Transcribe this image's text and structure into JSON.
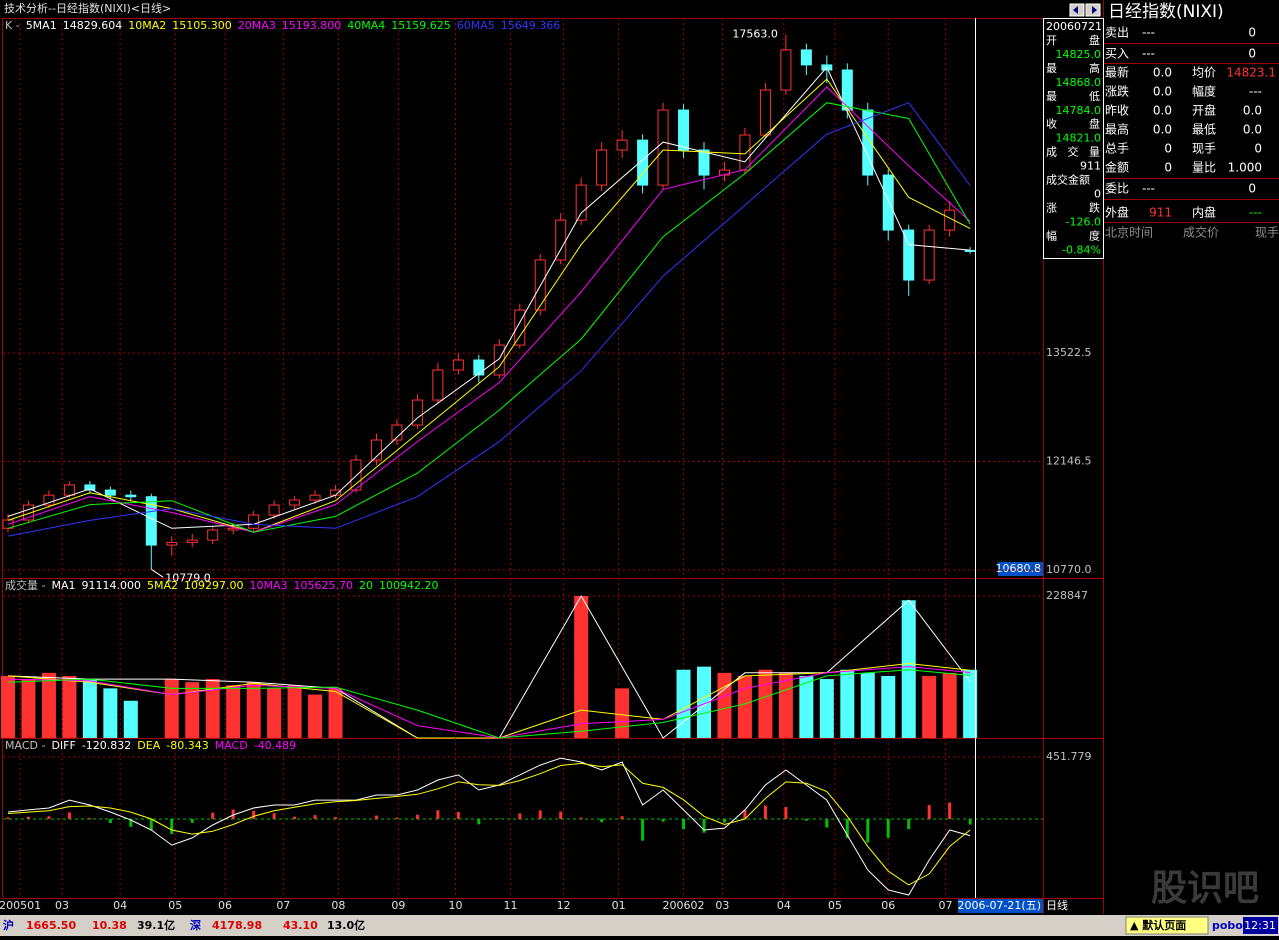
{
  "window_title": "技术分析--日经指数(NIXI)<日线>",
  "watermark": "股识吧",
  "chart_data": [
    {
      "type": "candlestick",
      "legend_label": "K -",
      "up_color": "#ff3232",
      "down_color": "#54ffff",
      "xlim": [
        -0.244,
        50.56
      ],
      "ylim": [
        10707,
        17775
      ],
      "yticks": [
        {
          "value": 10770,
          "label": "10770.0"
        },
        {
          "value": 12146.5,
          "label": "12146.5"
        },
        {
          "value": 13522.5,
          "label": "13522.5"
        }
      ],
      "open": [
        11300,
        11405,
        11595,
        11720,
        11850,
        11785,
        11720,
        11700,
        11087,
        11120,
        11150,
        11278,
        11300,
        11468,
        11595,
        11658,
        11720,
        11785,
        12166,
        12420,
        12610,
        12927,
        13308,
        13435,
        13245,
        13625,
        14070,
        14705,
        15210,
        15655,
        16100,
        16225,
        15655,
        16607,
        16100,
        15782,
        15845,
        16290,
        16861,
        17370,
        17180,
        17115,
        16607,
        15782,
        15084,
        14450,
        15084,
        14825
      ],
      "high": [
        11480,
        11650,
        11780,
        11900,
        11900,
        11830,
        11780,
        11740,
        11200,
        11230,
        11330,
        11370,
        11520,
        11650,
        11710,
        11780,
        11850,
        12230,
        12500,
        12680,
        13000,
        13400,
        13520,
        13500,
        13700,
        14150,
        14780,
        15300,
        15750,
        16200,
        16350,
        16300,
        16700,
        16680,
        16200,
        15950,
        16380,
        16950,
        17563,
        17450,
        17300,
        17200,
        16700,
        15850,
        15150,
        15150,
        15450,
        14868
      ],
      "low": [
        11250,
        11380,
        11560,
        11690,
        11740,
        11670,
        11640,
        10779,
        10950,
        11060,
        11100,
        11220,
        11260,
        11420,
        11540,
        11610,
        11680,
        11750,
        12100,
        12360,
        12560,
        12880,
        13250,
        13150,
        13200,
        13580,
        14000,
        14650,
        15150,
        15580,
        16000,
        15550,
        15600,
        16000,
        15600,
        15700,
        15800,
        16250,
        16800,
        17050,
        16950,
        16500,
        15650,
        14950,
        14250,
        14400,
        15000,
        14784
      ],
      "close": [
        11405,
        11595,
        11720,
        11850,
        11785,
        11720,
        11700,
        11087,
        11120,
        11150,
        11278,
        11300,
        11468,
        11595,
        11658,
        11720,
        11785,
        12166,
        12420,
        12610,
        12927,
        13308,
        13435,
        13245,
        13625,
        14070,
        14705,
        15210,
        15655,
        16100,
        16225,
        15655,
        16607,
        16100,
        15782,
        15845,
        16290,
        16861,
        17370,
        17180,
        17115,
        16607,
        15782,
        15084,
        14450,
        15084,
        15337,
        14821
      ],
      "series": [
        {
          "name": "5MA1",
          "color": "#ffffff",
          "value_label": "14829.604",
          "x": [
            0,
            4,
            8,
            12,
            16,
            20,
            24,
            28,
            32,
            36,
            40,
            44,
            47
          ],
          "values": [
            11450,
            11800,
            11300,
            11350,
            11720,
            12700,
            13450,
            15300,
            16200,
            15950,
            17150,
            14900,
            14829.604
          ]
        },
        {
          "name": "10MA2",
          "color": "#ffff00",
          "value_label": "15105.300",
          "x": [
            0,
            4,
            8,
            12,
            16,
            20,
            24,
            28,
            32,
            36,
            40,
            44,
            47
          ],
          "values": [
            11400,
            11750,
            11550,
            11250,
            11650,
            12500,
            13350,
            14900,
            16100,
            16050,
            17000,
            15500,
            15105.3
          ]
        },
        {
          "name": "20MA3",
          "color": "#ff00ff",
          "value_label": "15193.800",
          "x": [
            0,
            4,
            8,
            12,
            16,
            20,
            24,
            28,
            32,
            36,
            40,
            44,
            47
          ],
          "values": [
            11350,
            11700,
            11500,
            11250,
            11600,
            12400,
            13150,
            14300,
            15600,
            15850,
            16900,
            15900,
            15193.8
          ]
        },
        {
          "name": "40MA4",
          "color": "#00ff00",
          "value_label": "15159.625",
          "x": [
            0,
            4,
            8,
            12,
            16,
            20,
            24,
            28,
            32,
            36,
            40,
            44,
            47
          ],
          "values": [
            11300,
            11600,
            11650,
            11250,
            11450,
            12000,
            12800,
            13700,
            15000,
            15800,
            16700,
            16500,
            15159.625
          ]
        },
        {
          "name": "60MA5",
          "color": "#3333ff",
          "value_label": "15649.366",
          "x": [
            0,
            4,
            8,
            12,
            16,
            20,
            24,
            28,
            32,
            36,
            40,
            44,
            47
          ],
          "values": [
            11200,
            11400,
            11550,
            11350,
            11300,
            11700,
            12400,
            13300,
            14500,
            15400,
            16300,
            16700,
            15649.366
          ]
        }
      ],
      "annotations": [
        {
          "value": 17563,
          "label": "17563.0"
        },
        {
          "value": 10779,
          "label": "10779.0"
        }
      ],
      "cursor_value": 10680.8
    },
    {
      "type": "volume",
      "legend_label": "成交量 -",
      "xlim": [
        -0.244,
        50.56
      ],
      "ylim": [
        0,
        257856
      ],
      "yticks": [
        228847
      ],
      "values": [
        100000,
        95000,
        105000,
        100000,
        95000,
        80000,
        60000,
        0,
        95000,
        90000,
        95000,
        85000,
        90000,
        80000,
        85000,
        70000,
        80000,
        0,
        0,
        0,
        0,
        0,
        0,
        0,
        0,
        0,
        0,
        0,
        228847,
        0,
        80000,
        0,
        0,
        110000,
        115000,
        105000,
        100000,
        110000,
        105000,
        100000,
        95000,
        110000,
        105000,
        100000,
        222000,
        100000,
        105000,
        110000
      ],
      "series": [
        {
          "name": "MA1",
          "color": "#ffffff",
          "value_label": "91114.000",
          "x": [
            0,
            4,
            8,
            12,
            16,
            20,
            24,
            28,
            32,
            36,
            40,
            44,
            47
          ],
          "values": [
            100000,
            95000,
            95000,
            90000,
            80000,
            0,
            0,
            228847,
            0,
            105000,
            105000,
            222000,
            91114
          ]
        },
        {
          "name": "5MA2",
          "color": "#ffff00",
          "value_label": "109297.00",
          "x": [
            0,
            4,
            8,
            12,
            16,
            20,
            24,
            28,
            32,
            36,
            40,
            44,
            47
          ],
          "values": [
            100000,
            90000,
            70000,
            88000,
            75000,
            0,
            0,
            45000,
            30000,
            100000,
            105000,
            120000,
            109297
          ]
        },
        {
          "name": "10MA3",
          "color": "#ff00ff",
          "value_label": "105625.70",
          "x": [
            0,
            4,
            8,
            12,
            16,
            20,
            24,
            28,
            32,
            36,
            40,
            44,
            47
          ],
          "values": [
            95000,
            92000,
            70000,
            85000,
            80000,
            20000,
            0,
            23000,
            30000,
            80000,
            105000,
            115000,
            105625.7
          ]
        },
        {
          "name": "20",
          "color": "#00ff00",
          "value_label": "100942.20",
          "x": [
            0,
            4,
            8,
            12,
            16,
            20,
            24,
            28,
            32,
            36,
            40,
            44,
            47
          ],
          "values": [
            90000,
            95000,
            80000,
            80000,
            82000,
            45000,
            0,
            11000,
            25000,
            55000,
            100000,
            110000,
            100942.2
          ]
        }
      ]
    },
    {
      "type": "macd",
      "legend_label": "MACD -",
      "xlim": [
        -0.244,
        50.56
      ],
      "ylim": [
        -575.7,
        590.2
      ],
      "yticks": [
        451.779
      ],
      "series": [
        {
          "name": "DIFF",
          "color": "#ffffff",
          "style": "line",
          "values": [
            51,
            66,
            80,
            138,
            102,
            51,
            -7,
            -80,
            -190,
            -138,
            -44,
            29,
            80,
            102,
            102,
            138,
            138,
            138,
            175,
            175,
            211,
            284,
            321,
            211,
            248,
            321,
            393,
            444,
            415,
            357,
            415,
            102,
            211,
            66,
            -80,
            -66,
            66,
            248,
            357,
            248,
            138,
            -117,
            -372,
            -517,
            -554,
            -299,
            -80,
            -120.832
          ]
        },
        {
          "name": "DEA",
          "color": "#ffff00",
          "style": "line",
          "values": [
            40,
            50,
            60,
            90,
            95,
            80,
            50,
            0,
            -80,
            -110,
            -90,
            -40,
            20,
            60,
            85,
            110,
            125,
            135,
            150,
            165,
            180,
            220,
            270,
            250,
            245,
            280,
            330,
            390,
            405,
            380,
            395,
            260,
            230,
            140,
            20,
            -40,
            0,
            150,
            270,
            260,
            200,
            20,
            -200,
            -380,
            -480,
            -400,
            -200,
            -80.343
          ]
        },
        {
          "name": "MACD",
          "color": "#ff00ff",
          "style": "bar",
          "up_color": "#ff3232",
          "down_color": "#00c000",
          "values": [
            11,
            16,
            20,
            48,
            7,
            -29,
            -57,
            -80,
            -110,
            -28,
            46,
            69,
            60,
            42,
            17,
            28,
            13,
            3,
            25,
            10,
            31,
            64,
            51,
            -39,
            3,
            41,
            63,
            54,
            10,
            -23,
            20,
            -158,
            -19,
            -74,
            -100,
            -26,
            66,
            98,
            87,
            -12,
            -62,
            -137,
            -172,
            -137,
            -74,
            101,
            120,
            -40.489
          ]
        }
      ],
      "xticks": [
        {
          "value": 0.59,
          "label": "200501"
        },
        {
          "value": 2.64,
          "label": "03"
        },
        {
          "value": 5.48,
          "label": "04"
        },
        {
          "value": 8.17,
          "label": "05"
        },
        {
          "value": 10.6,
          "label": "06"
        },
        {
          "value": 13.45,
          "label": "07"
        },
        {
          "value": 16.14,
          "label": "08"
        },
        {
          "value": 19.07,
          "label": "09"
        },
        {
          "value": 21.86,
          "label": "10"
        },
        {
          "value": 24.55,
          "label": "11"
        },
        {
          "value": 27.14,
          "label": "12"
        },
        {
          "value": 29.83,
          "label": "01"
        },
        {
          "value": 33.0,
          "label": "200602"
        },
        {
          "value": 34.9,
          "label": "03"
        },
        {
          "value": 37.9,
          "label": "04"
        },
        {
          "value": 40.4,
          "label": "05"
        },
        {
          "value": 43.0,
          "label": "06"
        },
        {
          "value": 45.8,
          "label": "07"
        }
      ],
      "cursor_date": "2006-07-21(五)",
      "period": "日线"
    }
  ],
  "quote_box": {
    "date": "20060721",
    "rows": [
      {
        "label": "开盘",
        "value": "14825.0"
      },
      {
        "label": "最高",
        "value": "14868.0"
      },
      {
        "label": "最低",
        "value": "14784.0"
      },
      {
        "label": "收盘",
        "value": "14821.0"
      },
      {
        "label": "成交量",
        "value": "911"
      },
      {
        "label": "成交金额",
        "value": "0"
      },
      {
        "label": "涨跌",
        "value": "-126.0"
      },
      {
        "label": "幅度",
        "value": "-0.84%"
      }
    ]
  },
  "info_panel": {
    "title": "日经指数(NIXI)",
    "rows": [
      [
        "卖出",
        "---",
        "0"
      ],
      [
        "买入",
        "---",
        "0"
      ],
      [
        "最新",
        "0.0",
        "均价",
        "14823.1"
      ],
      [
        "涨跌",
        "0.0",
        "幅度",
        "---"
      ],
      [
        "昨收",
        "0.0",
        "开盘",
        "0.0"
      ],
      [
        "最高",
        "0.0",
        "最低",
        "0.0"
      ],
      [
        "总手",
        "0",
        "现手",
        "0"
      ],
      [
        "金额",
        "0",
        "量比",
        "1.000"
      ],
      [
        "委比",
        "---",
        "0"
      ],
      [
        "外盘",
        "911",
        "内盘",
        "---"
      ],
      [
        "北京时间",
        "成交价",
        "现手"
      ]
    ]
  },
  "status_bar": {
    "items": [
      "沪",
      "1665.50",
      "10.38",
      "39.1亿",
      "深",
      "4178.98",
      "43.10",
      "13.0亿"
    ],
    "page_button": "▲ 默认页面",
    "brand": "pobo",
    "clock": "12:31"
  }
}
